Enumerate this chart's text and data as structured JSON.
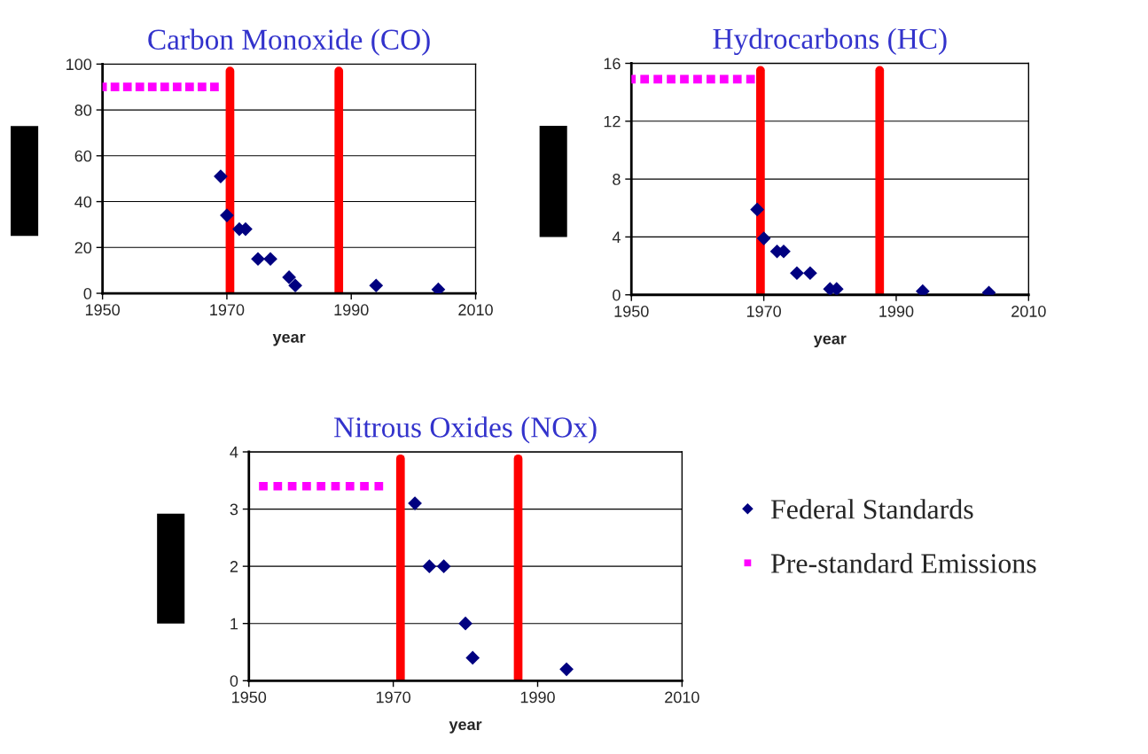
{
  "chart_data": [
    {
      "type": "scatter",
      "title": "Carbon Monoxide (CO)",
      "xlabel": "year",
      "xlim": [
        1950,
        2010
      ],
      "xticks": [
        1950,
        1970,
        1990,
        2010
      ],
      "ylim": [
        0,
        100
      ],
      "yticks": [
        0,
        20,
        40,
        60,
        80,
        100
      ],
      "grid": "y",
      "series": [
        {
          "color": "#000080",
          "marker": "diamond",
          "x": [
            1969,
            1970,
            1972,
            1973,
            1975,
            1977,
            1980,
            1981,
            1994,
            2004
          ],
          "values": [
            51,
            34,
            28,
            28,
            15,
            15,
            7,
            3.4,
            3.4,
            1.7
          ]
        },
        {
          "color": "#ff00ff",
          "marker": "square",
          "x": [
            1950,
            1952,
            1954,
            1956,
            1958,
            1960,
            1962,
            1964,
            1966,
            1968
          ],
          "values": [
            90,
            90,
            90,
            90,
            90,
            90,
            90,
            90,
            90,
            90
          ]
        }
      ],
      "ref_lines": [
        {
          "axis": "x",
          "value": 1970.5,
          "color": "#ff0000"
        },
        {
          "axis": "x",
          "value": 1988,
          "color": "#ff0000"
        }
      ]
    },
    {
      "type": "scatter",
      "title": "Hydrocarbons (HC)",
      "xlabel": "year",
      "xlim": [
        1950,
        2010
      ],
      "xticks": [
        1950,
        1970,
        1990,
        2010
      ],
      "ylim": [
        0,
        16
      ],
      "yticks": [
        0,
        4,
        8,
        12,
        16
      ],
      "grid": "y",
      "series": [
        {
          "color": "#000080",
          "marker": "diamond",
          "x": [
            1969,
            1970,
            1972,
            1973,
            1975,
            1977,
            1980,
            1981,
            1994,
            2004
          ],
          "values": [
            5.9,
            3.9,
            3.0,
            3.0,
            1.5,
            1.5,
            0.4,
            0.4,
            0.25,
            0.15
          ]
        },
        {
          "color": "#ff00ff",
          "marker": "square",
          "x": [
            1950,
            1952,
            1954,
            1956,
            1958,
            1960,
            1962,
            1964,
            1966,
            1968
          ],
          "values": [
            14.9,
            14.9,
            14.9,
            14.9,
            14.9,
            14.9,
            14.9,
            14.9,
            14.9,
            14.9
          ]
        }
      ],
      "ref_lines": [
        {
          "axis": "x",
          "value": 1969.5,
          "color": "#ff0000"
        },
        {
          "axis": "x",
          "value": 1987.5,
          "color": "#ff0000"
        }
      ]
    },
    {
      "type": "scatter",
      "title": "Nitrous Oxides (NOx)",
      "xlabel": "year",
      "xlim": [
        1950,
        2010
      ],
      "xticks": [
        1950,
        1970,
        1990,
        2010
      ],
      "ylim": [
        0,
        4
      ],
      "yticks": [
        0,
        1,
        2,
        3,
        4
      ],
      "grid": "y",
      "legend": "right",
      "series": [
        {
          "name": "Federal Standards",
          "color": "#000080",
          "marker": "diamond",
          "x": [
            1973,
            1975,
            1977,
            1980,
            1981,
            1994
          ],
          "values": [
            3.1,
            2,
            2,
            1,
            0.4,
            0.2
          ]
        },
        {
          "name": "Pre-standard Emissions",
          "color": "#ff00ff",
          "marker": "square",
          "x": [
            1952,
            1954,
            1956,
            1958,
            1960,
            1962,
            1964,
            1966,
            1968
          ],
          "values": [
            3.4,
            3.4,
            3.4,
            3.4,
            3.4,
            3.4,
            3.4,
            3.4,
            3.4
          ]
        }
      ],
      "ref_lines": [
        {
          "axis": "x",
          "value": 1971,
          "color": "#ff0000"
        },
        {
          "axis": "x",
          "value": 1987.3,
          "color": "#ff0000"
        }
      ]
    }
  ]
}
